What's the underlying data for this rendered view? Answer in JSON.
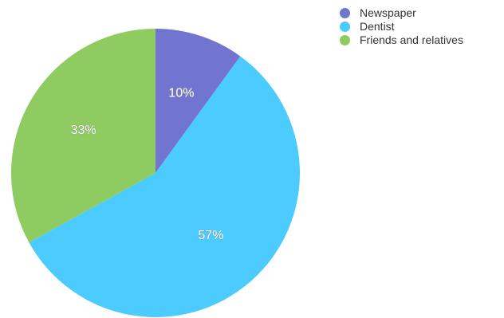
{
  "chart_data": {
    "type": "pie",
    "title": "",
    "series": [
      {
        "name": "Newspaper",
        "value": 10,
        "label": "10%",
        "color": "#7275d0"
      },
      {
        "name": "Dentist",
        "value": 57,
        "label": "57%",
        "color": "#4ccbfe"
      },
      {
        "name": "Friends and relatives",
        "value": 33,
        "label": "33%",
        "color": "#8ecb61"
      }
    ],
    "legend_position": "top-right",
    "start_angle_deg": 0,
    "direction": "clockwise"
  }
}
